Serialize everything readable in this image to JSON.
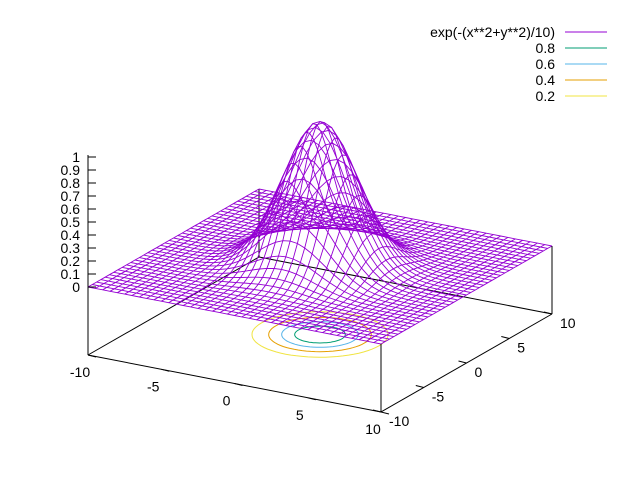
{
  "chart_data": {
    "type": "surface3d",
    "function": "exp(-(x**2+y**2)/10)",
    "x_range": [
      -10,
      10
    ],
    "y_range": [
      -10,
      10
    ],
    "z_range": [
      0,
      1
    ],
    "grid_samples": 41,
    "x_ticks": [
      "-10",
      "-5",
      "0",
      "5",
      "10"
    ],
    "y_ticks": [
      "-10",
      "-5",
      "0",
      "5",
      "10"
    ],
    "z_ticks": [
      "0",
      "0.1",
      "0.2",
      "0.3",
      "0.4",
      "0.5",
      "0.6",
      "0.7",
      "0.8",
      "0.9",
      "1"
    ],
    "z_tick_values": [
      0,
      0.1,
      0.2,
      0.3,
      0.4,
      0.5,
      0.6,
      0.7,
      0.8,
      0.9,
      1
    ],
    "legend": [
      {
        "label": "exp(-(x**2+y**2)/10)",
        "color": "#9400d3"
      },
      {
        "label": "0.8",
        "color": "#009e73"
      },
      {
        "label": "0.6",
        "color": "#56b4e9"
      },
      {
        "label": "0.4",
        "color": "#e69f00"
      },
      {
        "label": "0.2",
        "color": "#f0e442"
      }
    ],
    "contour_levels": [
      0.8,
      0.6,
      0.4,
      0.2
    ],
    "legend_placement": "top-right",
    "base_contours": true
  }
}
